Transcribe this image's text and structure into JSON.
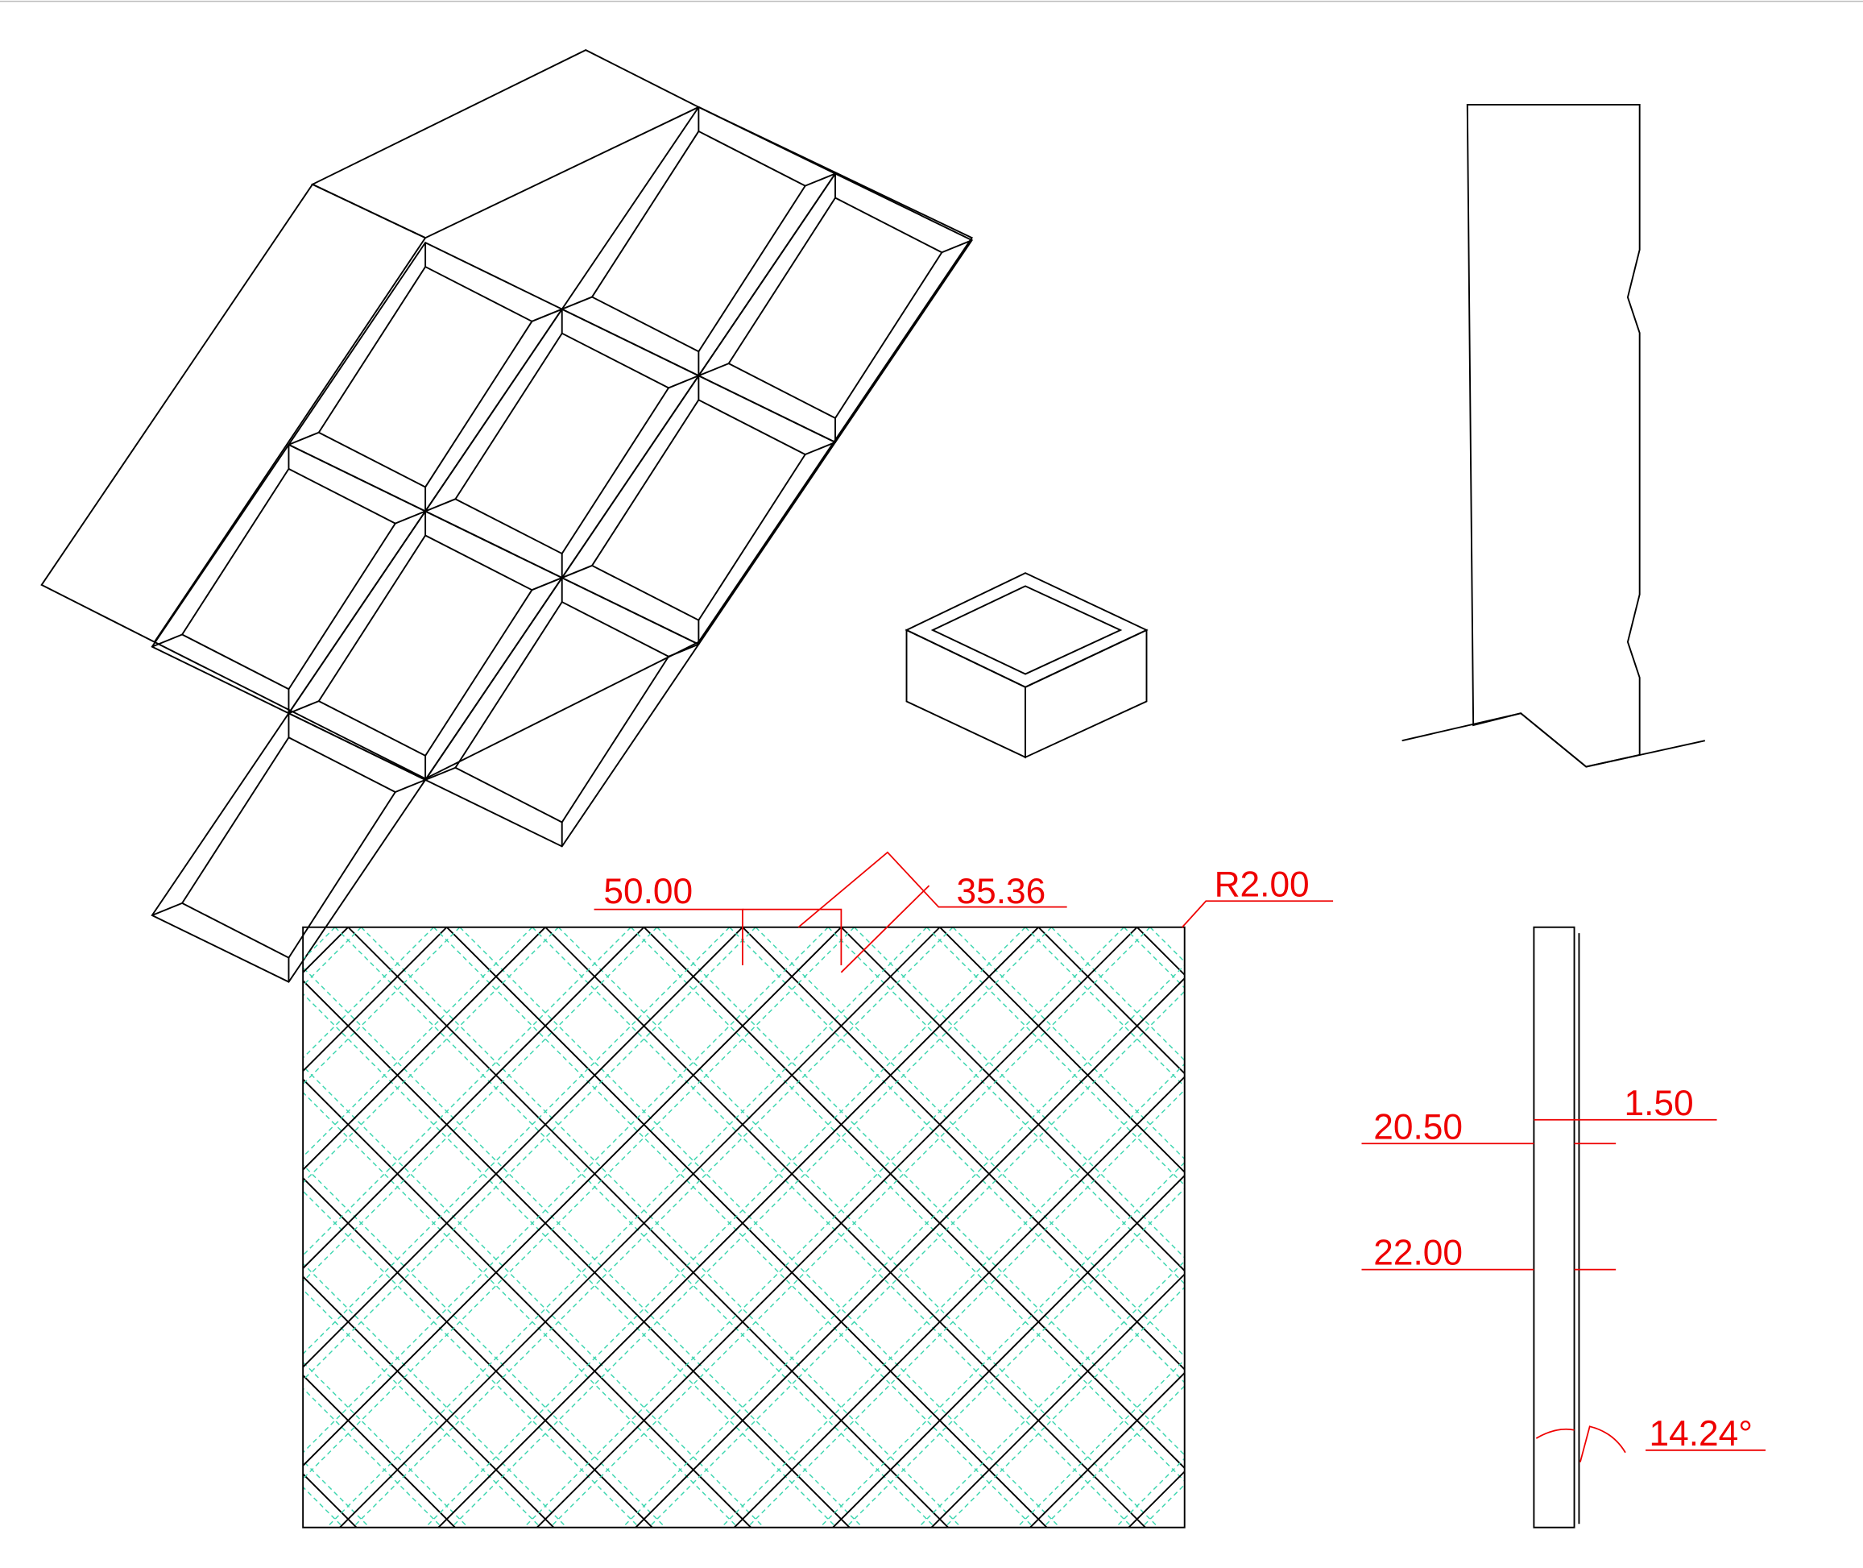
{
  "dimensions": {
    "pitch": "50.00",
    "diagonal": "35.36",
    "radius": "R2.00",
    "thickness_min": "20.50",
    "depth": "1.50",
    "thickness": "22.00",
    "angle": "14.24°"
  }
}
